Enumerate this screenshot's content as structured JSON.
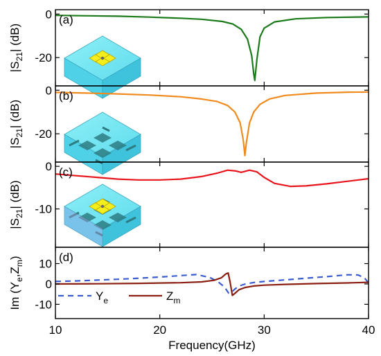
{
  "xaxis": {
    "label": "Frequency(GHz)",
    "range": [
      10,
      40
    ],
    "ticks": [
      10,
      20,
      30,
      40
    ],
    "tick_labels": [
      "10",
      "20",
      "30",
      "40"
    ]
  },
  "chart_data": [
    {
      "type": "line",
      "panel": "(a)",
      "ylabel_main": "|S",
      "ylabel_sub": "21",
      "ylabel_tail": "| (dB)",
      "ylim": [
        -33,
        2
      ],
      "yticks": [
        0,
        -20
      ],
      "ytick_labels": [
        "0",
        "-20"
      ],
      "series": [
        {
          "color": "#1a7a1a",
          "x": [
            10,
            13,
            16,
            19,
            22,
            24,
            26,
            27,
            27.8,
            28.4,
            28.8,
            29.0,
            29.1,
            29.3,
            29.6,
            30,
            31,
            33,
            36,
            40
          ],
          "y": [
            -0.6,
            -0.8,
            -1.0,
            -1.4,
            -1.9,
            -2.4,
            -3.4,
            -4.6,
            -7.0,
            -11.5,
            -19.0,
            -27.5,
            -30.5,
            -21.0,
            -10.5,
            -6.5,
            -3.6,
            -2.2,
            -1.6,
            -1.3
          ]
        }
      ],
      "inset": "top"
    },
    {
      "type": "line",
      "panel": "(b)",
      "ylabel_main": "|S",
      "ylabel_sub": "21",
      "ylabel_tail": "| (dB)",
      "ylim": [
        -33,
        2
      ],
      "yticks": [
        0,
        -20
      ],
      "ytick_labels": [
        "0",
        "-20"
      ],
      "series": [
        {
          "color": "#f08a1c",
          "x": [
            10,
            13,
            16,
            19,
            22,
            24,
            25.5,
            26.5,
            27.2,
            27.7,
            28.0,
            28.15,
            28.3,
            28.6,
            29.0,
            29.6,
            30.5,
            32,
            35,
            38,
            40
          ],
          "y": [
            -1.0,
            -1.3,
            -1.7,
            -2.2,
            -3.0,
            -4.0,
            -5.2,
            -7.0,
            -10.0,
            -15.0,
            -23.0,
            -30.0,
            -24.0,
            -15.0,
            -10.0,
            -6.5,
            -4.0,
            -2.4,
            -1.3,
            -0.9,
            -0.8
          ]
        }
      ],
      "inset": "bottom"
    },
    {
      "type": "line",
      "panel": "(c)",
      "ylabel_main": "|S",
      "ylabel_sub": "21",
      "ylabel_tail": "| (dB)",
      "ylim": [
        -19,
        1
      ],
      "yticks": [
        0,
        -10
      ],
      "ytick_labels": [
        "0",
        "-10"
      ],
      "series": [
        {
          "color": "#e8141c",
          "x": [
            10,
            12,
            14,
            16,
            18,
            20,
            22,
            24,
            25.5,
            26.5,
            27.3,
            27.8,
            28.6,
            29.3,
            30,
            31,
            32.5,
            34,
            36,
            38,
            40
          ],
          "y": [
            -1.8,
            -2.2,
            -2.6,
            -3.0,
            -3.2,
            -3.2,
            -3.0,
            -2.4,
            -1.6,
            -0.9,
            -1.1,
            -1.4,
            -0.9,
            -1.3,
            -2.6,
            -4.0,
            -4.7,
            -4.6,
            -4.1,
            -3.5,
            -2.9
          ]
        }
      ],
      "inset": "both"
    },
    {
      "type": "line",
      "panel": "(d)",
      "ylabel_main": "Im (Y",
      "ylabel_sub": "e",
      "ylabel_mid": ",Z",
      "ylabel_sub2": "m",
      "ylabel_tail": ")",
      "ylim": [
        -17,
        18
      ],
      "yticks": [
        10,
        0,
        -10
      ],
      "ytick_labels": [
        "10",
        "0",
        "-10"
      ],
      "legend_placement": "lower-left",
      "series": [
        {
          "name_main": "Y",
          "name_sub": "e",
          "color": "#3a5ad0",
          "dash": true,
          "x": [
            10,
            12,
            14,
            16,
            18,
            20,
            22,
            23.5,
            24.8,
            25.6,
            26.2,
            26.6,
            26.9,
            27.2,
            27.6,
            28.2,
            29,
            30,
            32,
            34,
            36,
            38,
            39,
            39.6,
            40
          ],
          "y": [
            1.2,
            1.5,
            1.9,
            2.3,
            2.8,
            3.4,
            4.1,
            4.6,
            3.2,
            1.0,
            -1.5,
            -4.5,
            -4.0,
            -2.5,
            -1.0,
            0.0,
            0.7,
            1.2,
            2.0,
            2.8,
            3.6,
            4.5,
            4.4,
            3.0,
            0.5
          ]
        },
        {
          "name_main": "Z",
          "name_sub": "m",
          "color": "#8a1e10",
          "dash": false,
          "x": [
            10,
            14,
            18,
            22,
            24,
            25.2,
            25.9,
            26.3,
            26.55,
            26.75,
            26.95,
            27.2,
            27.6,
            28.2,
            29,
            30,
            32,
            35,
            38,
            40
          ],
          "y": [
            0.0,
            0.1,
            0.3,
            0.6,
            1.0,
            1.8,
            3.0,
            4.8,
            5.4,
            0.5,
            -5.6,
            -4.6,
            -2.8,
            -1.7,
            -1.0,
            -0.6,
            -0.2,
            0.2,
            0.5,
            0.8
          ]
        }
      ]
    }
  ]
}
